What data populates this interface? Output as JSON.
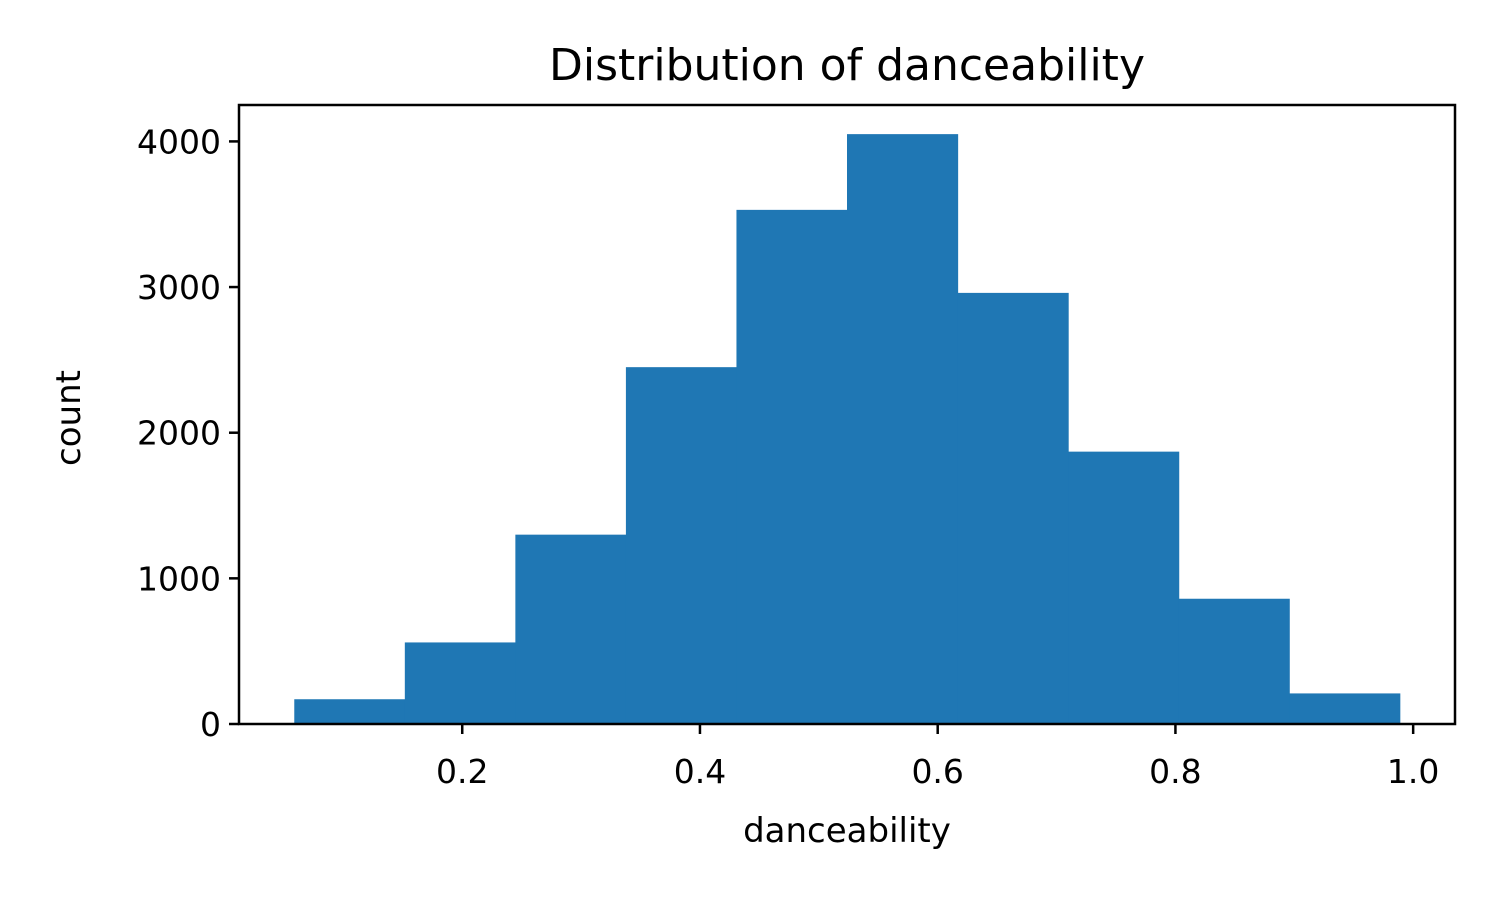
{
  "chart_data": {
    "type": "bar",
    "title": "Distribution of danceability",
    "xlabel": "danceability",
    "ylabel": "count",
    "bin_edges": [
      0.0587,
      0.1517,
      0.2447,
      0.3377,
      0.4307,
      0.5237,
      0.6167,
      0.7097,
      0.8027,
      0.8957,
      0.9887
    ],
    "values": [
      170,
      560,
      1300,
      2450,
      3530,
      4050,
      2960,
      1870,
      860,
      210
    ],
    "xlim": [
      0.0122,
      1.0352
    ],
    "ylim": [
      0,
      4250
    ],
    "xticks": [
      0.2,
      0.4,
      0.6,
      0.8,
      1.0
    ],
    "xtick_labels": [
      "0.2",
      "0.4",
      "0.6",
      "0.8",
      "1.0"
    ],
    "yticks": [
      0,
      1000,
      2000,
      3000,
      4000
    ],
    "ytick_labels": [
      "0",
      "1000",
      "2000",
      "3000",
      "4000"
    ],
    "bar_color": "#1f77b4",
    "grid": false,
    "legend": false
  }
}
